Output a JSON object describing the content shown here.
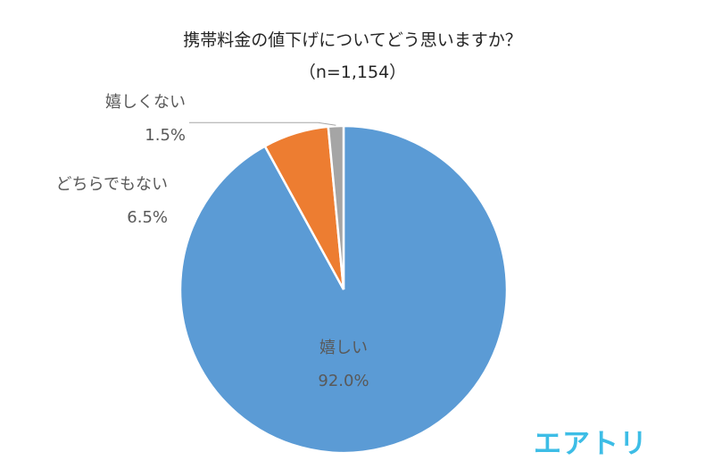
{
  "header": {
    "title": "携帯料金の値下げについてどう思いますか？",
    "subtitle": "（n=1,154）"
  },
  "brand": {
    "text": "エアトリ",
    "color": "#3DBDE6"
  },
  "chart_data": {
    "type": "pie",
    "title": "携帯料金の値下げについてどう思いますか？",
    "subtitle": "（n=1,154）",
    "slices": [
      {
        "label": "嬉しい",
        "value": 92.0,
        "display": "92.0%",
        "color": "#5B9BD5"
      },
      {
        "label": "どちらでもない",
        "value": 6.5,
        "display": "6.5%",
        "color": "#ED7D31"
      },
      {
        "label": "嬉しくない",
        "value": 1.5,
        "display": "1.5%",
        "color": "#A5A5A5"
      }
    ]
  }
}
